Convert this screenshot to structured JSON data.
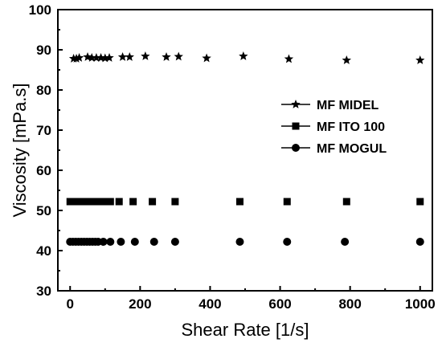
{
  "chart_data": {
    "type": "scatter",
    "xlabel": "Shear Rate [1/s]",
    "ylabel": "Viscosity [mPa.s]",
    "xlim": [
      -35,
      1035
    ],
    "ylim": [
      30,
      100
    ],
    "xticks": [
      0,
      200,
      400,
      600,
      800,
      1000
    ],
    "yticks": [
      30,
      40,
      50,
      60,
      70,
      80,
      90,
      100
    ],
    "grid": false,
    "legend_position": "right",
    "series": [
      {
        "name": "MF MIDEL",
        "marker": "star",
        "color": "#000000",
        "points": [
          {
            "x": 10,
            "y": 87.8
          },
          {
            "x": 18,
            "y": 87.8
          },
          {
            "x": 26,
            "y": 88.0
          },
          {
            "x": 50,
            "y": 88.2
          },
          {
            "x": 62,
            "y": 88.0
          },
          {
            "x": 75,
            "y": 88.0
          },
          {
            "x": 88,
            "y": 88.0
          },
          {
            "x": 100,
            "y": 87.9
          },
          {
            "x": 112,
            "y": 88.0
          },
          {
            "x": 150,
            "y": 88.2
          },
          {
            "x": 170,
            "y": 88.2
          },
          {
            "x": 215,
            "y": 88.4
          },
          {
            "x": 275,
            "y": 88.2
          },
          {
            "x": 310,
            "y": 88.3
          },
          {
            "x": 390,
            "y": 87.9
          },
          {
            "x": 495,
            "y": 88.4
          },
          {
            "x": 625,
            "y": 87.7
          },
          {
            "x": 790,
            "y": 87.4
          },
          {
            "x": 1000,
            "y": 87.4
          }
        ]
      },
      {
        "name": "MF ITO 100",
        "marker": "square",
        "color": "#000000",
        "points": [
          {
            "x": 0,
            "y": 52.2
          },
          {
            "x": 8,
            "y": 52.2
          },
          {
            "x": 16,
            "y": 52.2
          },
          {
            "x": 24,
            "y": 52.2
          },
          {
            "x": 32,
            "y": 52.2
          },
          {
            "x": 40,
            "y": 52.2
          },
          {
            "x": 48,
            "y": 52.2
          },
          {
            "x": 56,
            "y": 52.2
          },
          {
            "x": 64,
            "y": 52.2
          },
          {
            "x": 72,
            "y": 52.2
          },
          {
            "x": 80,
            "y": 52.2
          },
          {
            "x": 90,
            "y": 52.2
          },
          {
            "x": 100,
            "y": 52.2
          },
          {
            "x": 115,
            "y": 52.2
          },
          {
            "x": 140,
            "y": 52.2
          },
          {
            "x": 180,
            "y": 52.2
          },
          {
            "x": 235,
            "y": 52.2
          },
          {
            "x": 300,
            "y": 52.2
          },
          {
            "x": 485,
            "y": 52.2
          },
          {
            "x": 620,
            "y": 52.2
          },
          {
            "x": 790,
            "y": 52.2
          },
          {
            "x": 1000,
            "y": 52.2
          }
        ]
      },
      {
        "name": "MF MOGUL",
        "marker": "circle",
        "color": "#000000",
        "points": [
          {
            "x": 0,
            "y": 42.2
          },
          {
            "x": 8,
            "y": 42.2
          },
          {
            "x": 16,
            "y": 42.2
          },
          {
            "x": 24,
            "y": 42.2
          },
          {
            "x": 32,
            "y": 42.2
          },
          {
            "x": 40,
            "y": 42.2
          },
          {
            "x": 48,
            "y": 42.2
          },
          {
            "x": 56,
            "y": 42.2
          },
          {
            "x": 64,
            "y": 42.2
          },
          {
            "x": 72,
            "y": 42.2
          },
          {
            "x": 80,
            "y": 42.2
          },
          {
            "x": 95,
            "y": 42.2
          },
          {
            "x": 115,
            "y": 42.2
          },
          {
            "x": 145,
            "y": 42.2
          },
          {
            "x": 185,
            "y": 42.2
          },
          {
            "x": 240,
            "y": 42.2
          },
          {
            "x": 300,
            "y": 42.2
          },
          {
            "x": 485,
            "y": 42.2
          },
          {
            "x": 620,
            "y": 42.2
          },
          {
            "x": 785,
            "y": 42.2
          },
          {
            "x": 1000,
            "y": 42.2
          }
        ]
      }
    ]
  }
}
